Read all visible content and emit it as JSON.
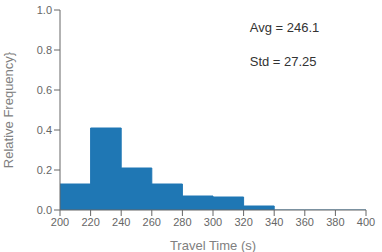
{
  "chart_data": {
    "type": "histogram",
    "bins": [
      200,
      220,
      240,
      260,
      280,
      300,
      320,
      340,
      360,
      380,
      400
    ],
    "values": [
      0.13,
      0.41,
      0.21,
      0.13,
      0.07,
      0.065,
      0.02,
      0.0,
      0.0,
      0.0
    ],
    "color": "#1f77b4",
    "xlabel": "Travel Time (s)",
    "ylabel": "Relative Frequency}",
    "xlim": [
      200,
      400
    ],
    "ylim": [
      0.0,
      1.0
    ],
    "xticks": [
      200,
      220,
      240,
      260,
      280,
      300,
      320,
      340,
      360,
      380,
      400
    ],
    "yticks": [
      {
        "value": 0,
        "label": "0.0"
      },
      0.2,
      0.4,
      0.6,
      0.8,
      {
        "value": 1,
        "label": "1.0"
      }
    ],
    "annotations": [
      "Avg = 246.1",
      "Std = 27.25"
    ]
  }
}
